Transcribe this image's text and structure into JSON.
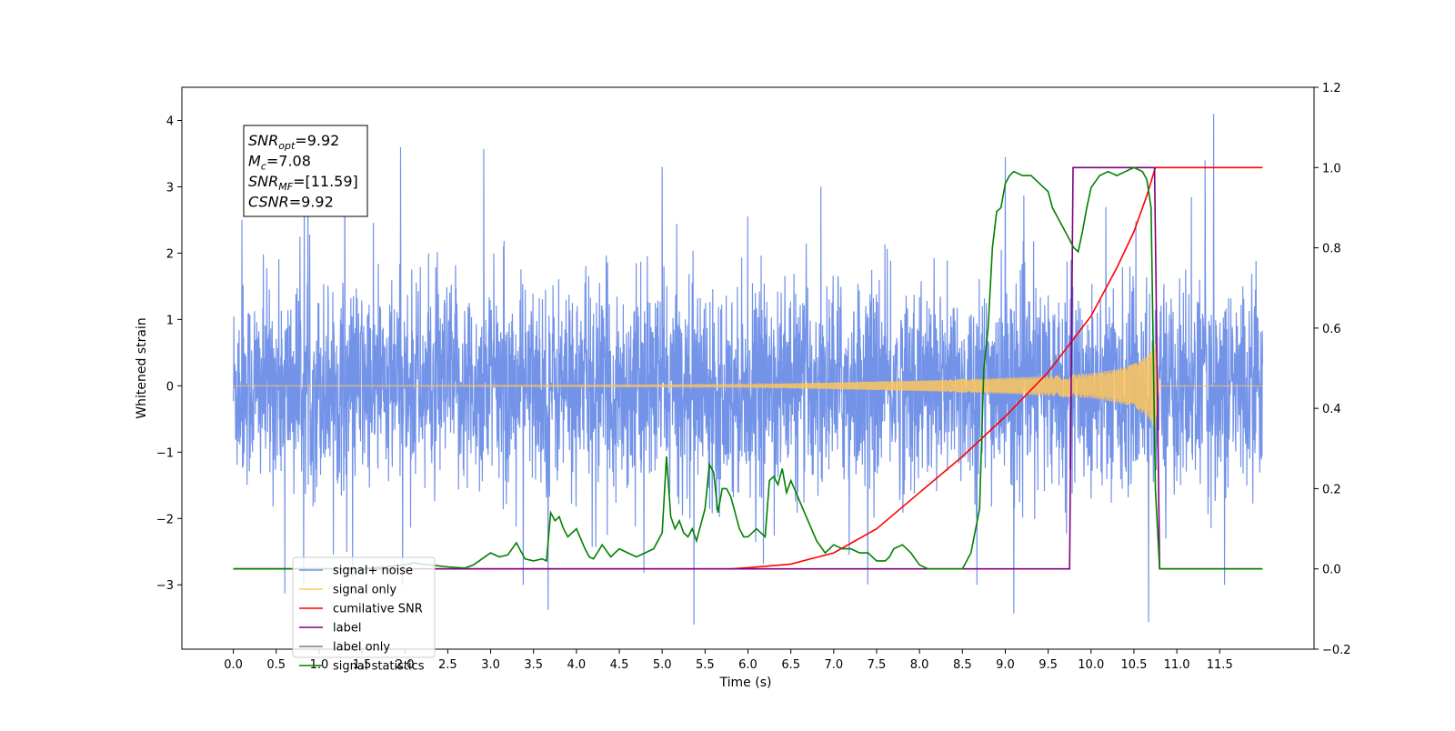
{
  "chart_data": {
    "type": "line",
    "xlabel": "Time (s)",
    "ylabel": "Whitened strain",
    "xlim": [
      -0.6,
      12.6
    ],
    "ylim": [
      -3.97,
      4.5
    ],
    "y2lim": [
      -0.2,
      1.2
    ],
    "x_ticks": [
      0.0,
      0.5,
      1.0,
      1.5,
      2.0,
      2.5,
      3.0,
      3.5,
      4.0,
      4.5,
      5.0,
      5.5,
      6.0,
      6.5,
      7.0,
      7.5,
      8.0,
      8.5,
      9.0,
      9.5,
      10.0,
      10.5,
      11.0,
      11.5
    ],
    "x_tick_labels": [
      "0.0",
      "0.5",
      "1.0",
      "1.5",
      "2.0",
      "2.5",
      "3.0",
      "3.5",
      "4.0",
      "4.5",
      "5.0",
      "5.5",
      "6.0",
      "6.5",
      "7.0",
      "7.5",
      "8.0",
      "8.5",
      "9.0",
      "9.5",
      "10.0",
      "10.5",
      "11.0",
      "11.5"
    ],
    "y_ticks": [
      -3,
      -2,
      -1,
      0,
      1,
      2,
      3,
      4
    ],
    "y_tick_labels": [
      "−3",
      "−2",
      "−1",
      "0",
      "1",
      "2",
      "3",
      "4"
    ],
    "y2_ticks": [
      -0.2,
      0.0,
      0.2,
      0.4,
      0.6,
      0.8,
      1.0,
      1.2
    ],
    "y2_tick_labels": [
      "−0.2",
      "0.0",
      "0.2",
      "0.4",
      "0.6",
      "0.8",
      "1.0",
      "1.2"
    ],
    "legend_position": "lower-left",
    "grid": false,
    "annotation_box": {
      "lines": [
        {
          "sym": "SNR",
          "sub": "opt",
          "value": "=9.92"
        },
        {
          "sym": "M",
          "sub": "c",
          "value": "=7.08"
        },
        {
          "sym": "SNR",
          "sub": "MF",
          "value": "=[11.59]"
        },
        {
          "sym": "CSNR",
          "sub": "",
          "value": "=9.92"
        }
      ]
    },
    "series": [
      {
        "name": "signal+ noise",
        "axis": "left",
        "color": "#7393e8",
        "style": "noise",
        "x_range": [
          0.0,
          12.0
        ],
        "envelope_typical": 1.5,
        "envelope_peak_points": [
          {
            "x": 0.1,
            "y": 2.5
          },
          {
            "x": 0.6,
            "y": -3.13
          },
          {
            "x": 1.3,
            "y": 3.55
          },
          {
            "x": 1.95,
            "y": 3.6
          },
          {
            "x": 2.92,
            "y": 3.57
          },
          {
            "x": 3.67,
            "y": -3.38
          },
          {
            "x": 5.0,
            "y": -3.35
          },
          {
            "x": 5.37,
            "y": -3.6
          },
          {
            "x": 5.0,
            "y": 3.3
          },
          {
            "x": 9.0,
            "y": 3.45
          },
          {
            "x": 9.1,
            "y": -3.43
          },
          {
            "x": 10.67,
            "y": -3.56
          },
          {
            "x": 11.43,
            "y": 4.1
          },
          {
            "x": 11.33,
            "y": 3.4
          }
        ]
      },
      {
        "name": "signal only",
        "axis": "left",
        "color": "#ffc65c",
        "style": "chirp",
        "x": [
          0.0,
          6.0,
          7.0,
          8.0,
          9.0,
          9.5,
          10.0,
          10.3,
          10.5,
          10.65,
          10.75,
          10.8,
          11.0,
          12.0
        ],
        "amplitude": [
          0.0,
          0.02,
          0.05,
          0.08,
          0.12,
          0.15,
          0.19,
          0.25,
          0.33,
          0.45,
          0.65,
          0.0,
          0.0,
          0.0
        ]
      },
      {
        "name": "cumilative SNR",
        "axis": "right",
        "color": "#ff0000",
        "x": [
          0.0,
          5.8,
          6.0,
          6.5,
          7.0,
          7.5,
          8.0,
          8.5,
          9.0,
          9.5,
          10.0,
          10.3,
          10.5,
          10.65,
          10.75,
          10.78,
          12.0
        ],
        "values": [
          0.0,
          0.0,
          0.003,
          0.012,
          0.04,
          0.1,
          0.19,
          0.28,
          0.38,
          0.49,
          0.63,
          0.75,
          0.84,
          0.93,
          1.0,
          1.0,
          1.0
        ]
      },
      {
        "name": "label",
        "axis": "right",
        "color": "#800080",
        "x": [
          0.0,
          9.75,
          9.79,
          10.74,
          10.8,
          12.0
        ],
        "values": [
          0.0,
          0.0,
          1.0,
          1.0,
          0.0,
          0.0
        ]
      },
      {
        "name": "label only",
        "axis": "right",
        "color": "#7f7f7f",
        "x": [],
        "values": []
      },
      {
        "name": "signal statistics",
        "axis": "right",
        "color": "#008000",
        "x": [
          0.0,
          0.5,
          1.0,
          1.5,
          2.0,
          2.1,
          2.2,
          2.3,
          2.5,
          2.7,
          2.8,
          2.9,
          3.0,
          3.1,
          3.2,
          3.3,
          3.4,
          3.5,
          3.6,
          3.65,
          3.7,
          3.75,
          3.8,
          3.85,
          3.9,
          3.95,
          4.0,
          4.05,
          4.1,
          4.15,
          4.2,
          4.3,
          4.4,
          4.5,
          4.6,
          4.7,
          4.8,
          4.9,
          5.0,
          5.05,
          5.1,
          5.15,
          5.2,
          5.25,
          5.3,
          5.35,
          5.4,
          5.45,
          5.5,
          5.55,
          5.6,
          5.65,
          5.7,
          5.75,
          5.8,
          5.85,
          5.9,
          5.95,
          6.0,
          6.1,
          6.2,
          6.25,
          6.3,
          6.35,
          6.4,
          6.45,
          6.5,
          6.6,
          6.7,
          6.8,
          6.9,
          7.0,
          7.1,
          7.2,
          7.3,
          7.4,
          7.5,
          7.6,
          7.65,
          7.7,
          7.8,
          7.85,
          7.9,
          8.0,
          8.1,
          8.2,
          8.3,
          8.5,
          8.6,
          8.7,
          8.75,
          8.8,
          8.85,
          8.9,
          8.95,
          9.0,
          9.05,
          9.1,
          9.2,
          9.3,
          9.4,
          9.5,
          9.55,
          9.6,
          9.7,
          9.8,
          9.85,
          9.9,
          9.95,
          10.0,
          10.1,
          10.2,
          10.3,
          10.4,
          10.5,
          10.6,
          10.65,
          10.7,
          10.75,
          10.8,
          10.85,
          11.0,
          12.0
        ],
        "values": [
          0.0,
          0.0,
          0.0,
          0.0,
          0.01,
          0.015,
          0.012,
          0.01,
          0.005,
          0.002,
          0.01,
          0.025,
          0.04,
          0.03,
          0.035,
          0.065,
          0.025,
          0.02,
          0.025,
          0.02,
          0.14,
          0.12,
          0.13,
          0.1,
          0.08,
          0.09,
          0.1,
          0.075,
          0.05,
          0.03,
          0.025,
          0.06,
          0.03,
          0.05,
          0.04,
          0.03,
          0.04,
          0.05,
          0.09,
          0.28,
          0.13,
          0.1,
          0.12,
          0.09,
          0.08,
          0.1,
          0.07,
          0.11,
          0.15,
          0.26,
          0.24,
          0.14,
          0.2,
          0.2,
          0.18,
          0.14,
          0.1,
          0.08,
          0.08,
          0.1,
          0.08,
          0.22,
          0.23,
          0.21,
          0.25,
          0.19,
          0.22,
          0.17,
          0.12,
          0.07,
          0.04,
          0.06,
          0.05,
          0.05,
          0.04,
          0.04,
          0.02,
          0.02,
          0.03,
          0.05,
          0.06,
          0.05,
          0.04,
          0.01,
          0.0,
          0.0,
          0.0,
          0.0,
          0.04,
          0.15,
          0.5,
          0.6,
          0.8,
          0.89,
          0.9,
          0.96,
          0.98,
          0.99,
          0.98,
          0.98,
          0.96,
          0.94,
          0.9,
          0.88,
          0.84,
          0.8,
          0.79,
          0.84,
          0.9,
          0.95,
          0.98,
          0.99,
          0.98,
          0.99,
          1.0,
          0.99,
          0.97,
          0.9,
          0.2,
          0.0,
          0.0,
          0.0,
          0.0
        ]
      }
    ]
  }
}
